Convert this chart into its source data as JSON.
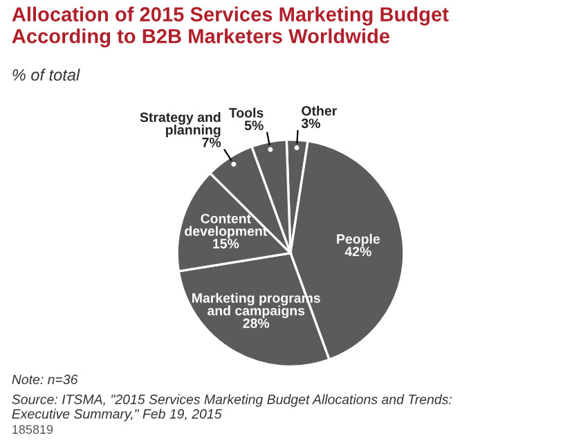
{
  "chart_data": {
    "type": "pie",
    "title": "Allocation of 2015 Services Marketing Budget\nAccording to B2B Marketers Worldwide",
    "subtitle": "% of total",
    "categories": [
      "Other",
      "People",
      "Marketing programs\nand campaigns",
      "Content\ndevelopment",
      "Strategy and\nplanning",
      "Tools"
    ],
    "values": [
      3,
      42,
      28,
      15,
      7,
      5
    ],
    "value_labels": [
      "3%",
      "42%",
      "28%",
      "15%",
      "7%",
      "5%"
    ],
    "colors": [
      "#5b5b5b",
      "#5b5b5b",
      "#5b5b5b",
      "#5b5b5b",
      "#5b5b5b",
      "#5b5b5b"
    ],
    "annotations": [
      "Note: n=36",
      "Source: ITSMA, \"2015 Services Marketing Budget Allocations and Trends:\nExecutive Summary,\" Feb 19, 2015",
      "185819"
    ]
  }
}
